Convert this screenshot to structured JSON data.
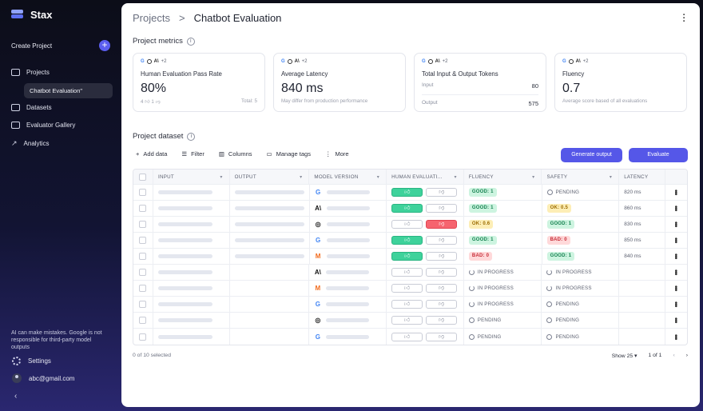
{
  "sidebar": {
    "app_name": "Stax",
    "create_label": "Create Project",
    "nav": {
      "projects": "Projects",
      "chatbot_eval": "Chatbot Evaluation\"",
      "datasets": "Datasets",
      "evaluator_gallery": "Evaluator Gallery",
      "analytics": "Analytics"
    },
    "note": "AI can make mistakes. Google is not responsible for third-party model outputs",
    "settings": "Settings",
    "user_email": "abc@gmail.com"
  },
  "header": {
    "crumb_root": "Projects",
    "separator": ">",
    "crumb_current": "Chatbot Evaluation"
  },
  "metrics_section": {
    "title": "Project metrics"
  },
  "metrics": [
    {
      "more": "+2",
      "title": "Human Evaluation Pass Rate",
      "value": "80%",
      "up": "4",
      "down": "1",
      "note": "Total: 5"
    },
    {
      "more": "+2",
      "title": "Average Latency",
      "value": "840 ms",
      "note": "May differ from production performance"
    },
    {
      "more": "+2",
      "title": "Total Input & Output Tokens",
      "input_label": "Input",
      "input_value": "80",
      "output_label": "Output",
      "output_value": "575"
    },
    {
      "more": "+2",
      "title": "Fluency",
      "value": "0.7",
      "note": "Average score based of all evaluations"
    }
  ],
  "dataset_section": {
    "title": "Project dataset"
  },
  "toolbar": {
    "add_data": "Add data",
    "filter": "Filter",
    "columns": "Columns",
    "manage_tags": "Manage tags",
    "more": "More",
    "generate_output": "Generate output",
    "evaluate": "Evaluate"
  },
  "columns": [
    "INPUT",
    "OUTPUT",
    "MODEL VERSION",
    "HUMAN EVALUATI...",
    "FLUENCY",
    "SAFETY",
    "LATENCY"
  ],
  "rows": [
    {
      "has_output": true,
      "model": "google",
      "vote": "up",
      "fluency": "GOOD: 1",
      "fluency_kind": "good",
      "safety": "PENDING",
      "safety_kind": "pending",
      "latency": "820 ms"
    },
    {
      "has_output": true,
      "model": "anthropic",
      "vote": "up",
      "fluency": "GOOD: 1",
      "fluency_kind": "good",
      "safety": "OK: 0.5",
      "safety_kind": "ok",
      "latency": "860 ms"
    },
    {
      "has_output": true,
      "model": "openai",
      "vote": "down",
      "fluency": "OK: 0.6",
      "fluency_kind": "ok",
      "safety": "GOOD: 1",
      "safety_kind": "good",
      "latency": "830 ms"
    },
    {
      "has_output": true,
      "model": "google",
      "vote": "up",
      "fluency": "GOOD: 1",
      "fluency_kind": "good",
      "safety": "BAD: 0",
      "safety_kind": "bad",
      "latency": "850 ms"
    },
    {
      "has_output": true,
      "model": "mistral",
      "vote": "up",
      "fluency": "BAD: 0",
      "fluency_kind": "bad",
      "safety": "GOOD: 1",
      "safety_kind": "good",
      "latency": "840 ms"
    },
    {
      "has_output": false,
      "model": "anthropic",
      "vote": "none",
      "fluency": "IN PROGRESS",
      "fluency_kind": "progress",
      "safety": "IN PROGRESS",
      "safety_kind": "progress",
      "latency": ""
    },
    {
      "has_output": false,
      "model": "mistral",
      "vote": "none",
      "fluency": "IN PROGRESS",
      "fluency_kind": "progress",
      "safety": "IN PROGRESS",
      "safety_kind": "progress",
      "latency": ""
    },
    {
      "has_output": false,
      "model": "google",
      "vote": "none",
      "fluency": "IN PROGRESS",
      "fluency_kind": "progress",
      "safety": "PENDING",
      "safety_kind": "pending",
      "latency": ""
    },
    {
      "has_output": false,
      "model": "openai",
      "vote": "none",
      "fluency": "PENDING",
      "fluency_kind": "pending",
      "safety": "PENDING",
      "safety_kind": "pending",
      "latency": ""
    },
    {
      "has_output": false,
      "model": "google",
      "vote": "none",
      "fluency": "PENDING",
      "fluency_kind": "pending",
      "safety": "PENDING",
      "safety_kind": "pending",
      "latency": ""
    }
  ],
  "footer": {
    "selected": "0 of 10 selected",
    "page_size": "Show 25",
    "page_info": "1 of 1"
  },
  "colors": {
    "accent": "#5557e8",
    "good": "#14814f",
    "ok": "#9b6b00",
    "bad": "#c62b36"
  }
}
